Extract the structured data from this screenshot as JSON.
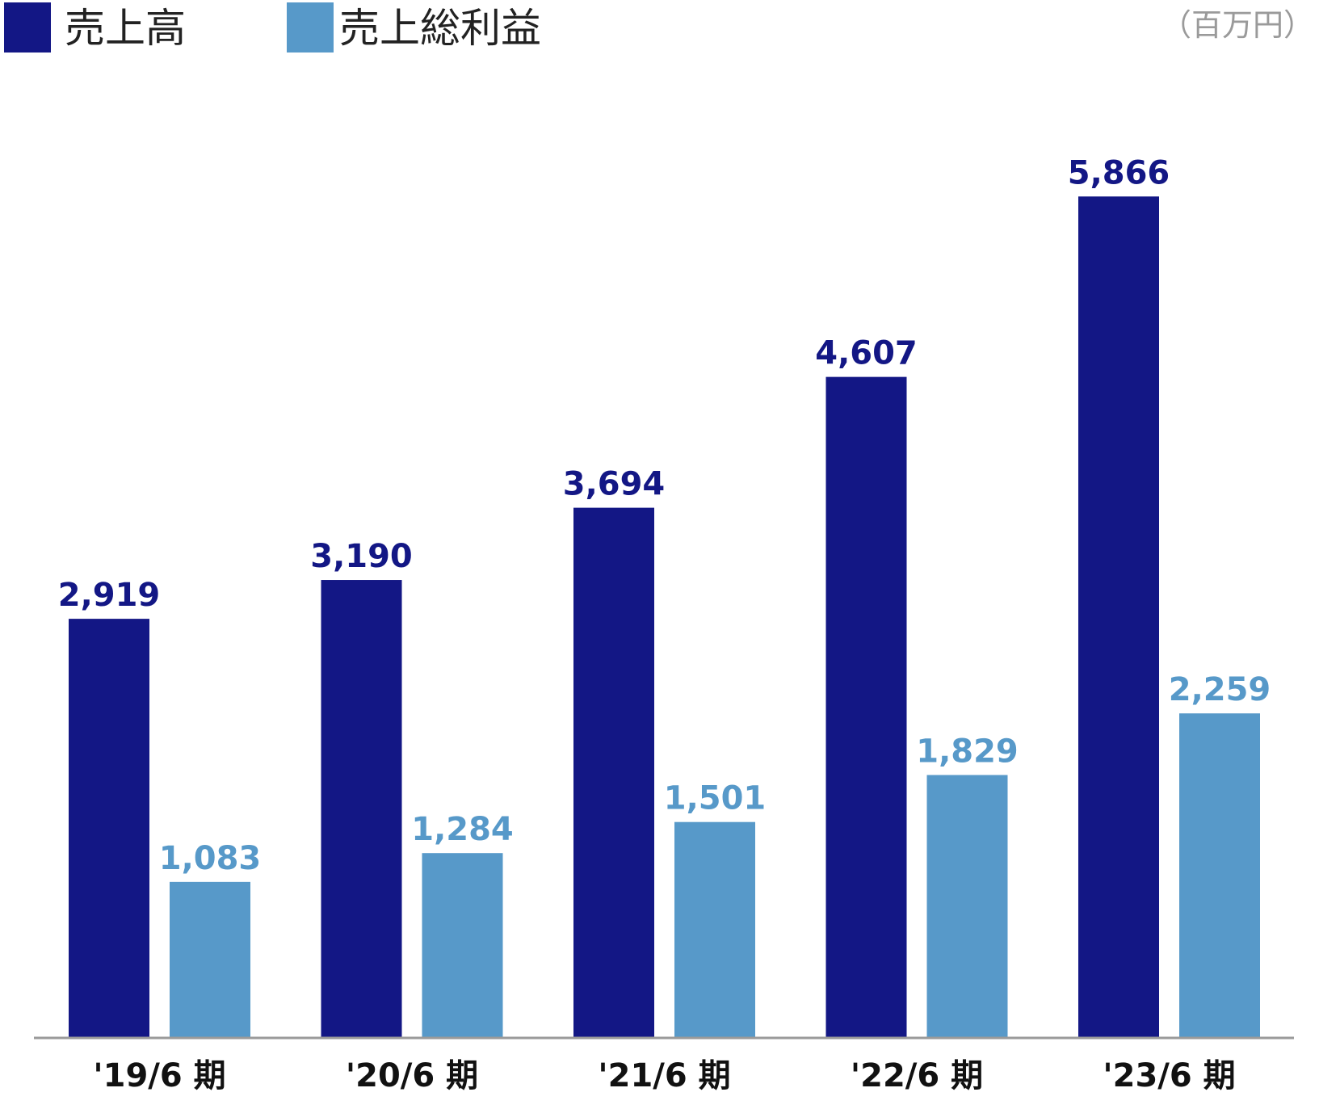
{
  "unit_label": "（百万円）",
  "colors": {
    "sales": "#131785",
    "gross_profit": "#5799c9",
    "axis": "#9a9a9a",
    "tick_text": "#111111"
  },
  "legend": [
    {
      "label": "売上高"
    },
    {
      "label": "売上総利益"
    }
  ],
  "chart_data": {
    "type": "bar",
    "title": "",
    "xlabel": "",
    "ylabel": "",
    "categories": [
      "'19/6 期",
      "'20/6 期",
      "'21/6 期",
      "'22/6 期",
      "'23/6 期"
    ],
    "series": [
      {
        "name": "売上高",
        "values": [
          2919,
          3190,
          3694,
          4607,
          5866
        ],
        "labels": [
          "2,919",
          "3,190",
          "3,694",
          "4,607",
          "5,866"
        ]
      },
      {
        "name": "売上総利益",
        "values": [
          1083,
          1284,
          1501,
          1829,
          2259
        ],
        "labels": [
          "1,083",
          "1,284",
          "1,501",
          "1,829",
          "2,259"
        ]
      }
    ],
    "ylim": [
      0,
      6200
    ],
    "grid": false,
    "legend_position": "top-left"
  }
}
